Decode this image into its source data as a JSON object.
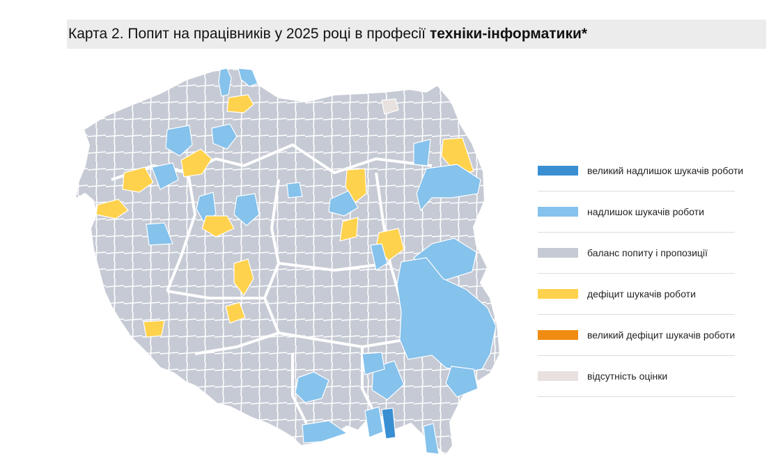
{
  "title": {
    "prefix": "Карта 2. Попит на працівників у 2025 році в професії",
    "bold": "техніки-інформатики*"
  },
  "colors": {
    "large_surplus": "#3a8fd3",
    "surplus": "#85c2ec",
    "balance": "#c6cad4",
    "deficit": "#ffd24d",
    "large_deficit": "#f08c12",
    "no_estimate": "#e8e1df",
    "border": "#ffffff"
  },
  "legend": [
    {
      "key": "large_surplus",
      "label": "великий надлишок шукачів роботи",
      "color": "#3a8fd3"
    },
    {
      "key": "surplus",
      "label": "надлишок шукачів роботи",
      "color": "#85c2ec"
    },
    {
      "key": "balance",
      "label": "баланс попиту і пропозиції",
      "color": "#c6cad4"
    },
    {
      "key": "deficit",
      "label": "дефіцит шукачів роботи",
      "color": "#ffd24d"
    },
    {
      "key": "large_deficit",
      "label": "великий дефіцит шукачів роботи",
      "color": "#f08c12"
    },
    {
      "key": "no_estimate",
      "label": "відсутність оцінки",
      "color": "#e8e1df"
    }
  ]
}
